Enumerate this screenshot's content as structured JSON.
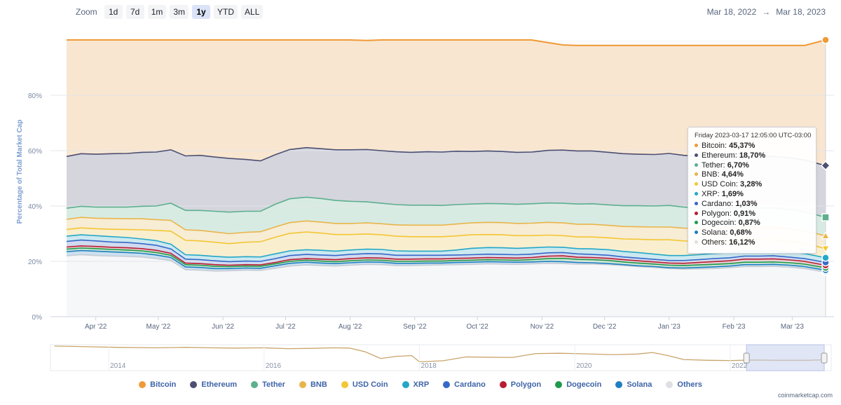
{
  "zoom": {
    "label": "Zoom",
    "buttons": [
      "1d",
      "7d",
      "1m",
      "3m",
      "1y",
      "YTD",
      "ALL"
    ],
    "active": "1y"
  },
  "range": {
    "from": "Mar 18, 2022",
    "separator": "→",
    "to": "Mar 18, 2023"
  },
  "chart_data": {
    "type": "area",
    "stacked": true,
    "ylabel": "Percentage of Total Market Cap",
    "ylim": [
      0,
      100
    ],
    "yticks": [
      "0%",
      "20%",
      "40%",
      "60%",
      "80%"
    ],
    "x_ticks": [
      "Apr '22",
      "May '22",
      "Jun '22",
      "Jul '22",
      "Aug '22",
      "Sep '22",
      "Oct '22",
      "Nov '22",
      "Dec '22",
      "Jan '23",
      "Feb '23",
      "Mar '23"
    ],
    "x": [
      "2022-03-18",
      "2022-03-25",
      "2022-04-01",
      "2022-04-09",
      "2022-04-16",
      "2022-04-23",
      "2022-04-30",
      "2022-05-07",
      "2022-05-14",
      "2022-05-21",
      "2022-05-28",
      "2022-06-04",
      "2022-06-12",
      "2022-06-19",
      "2022-06-26",
      "2022-07-03",
      "2022-07-11",
      "2022-07-18",
      "2022-07-25",
      "2022-08-01",
      "2022-08-09",
      "2022-08-16",
      "2022-08-23",
      "2022-08-30",
      "2022-09-07",
      "2022-09-14",
      "2022-09-21",
      "2022-09-28",
      "2022-10-06",
      "2022-10-13",
      "2022-10-20",
      "2022-10-27",
      "2022-11-04",
      "2022-11-11",
      "2022-11-18",
      "2022-11-25",
      "2022-12-03",
      "2022-12-10",
      "2022-12-17",
      "2022-12-25",
      "2023-01-01",
      "2023-01-08",
      "2023-01-15",
      "2023-01-22",
      "2023-01-30",
      "2023-02-06",
      "2023-02-13",
      "2023-02-20",
      "2023-02-28",
      "2023-03-07",
      "2023-03-17"
    ],
    "series": [
      {
        "name": "Others",
        "color": "#e6e8ec",
        "values": [
          22.0,
          22.4,
          22.1,
          21.9,
          21.8,
          21.6,
          21.0,
          20.3,
          17.0,
          16.8,
          16.5,
          16.6,
          16.8,
          16.7,
          17.5,
          18.3,
          18.7,
          18.5,
          18.3,
          18.6,
          18.9,
          18.8,
          18.5,
          18.5,
          18.6,
          18.7,
          18.8,
          18.9,
          19.1,
          19.0,
          18.9,
          19.1,
          19.3,
          19.2,
          19.0,
          19.0,
          18.8,
          18.5,
          18.1,
          17.8,
          17.4,
          17.2,
          17.3,
          17.4,
          17.7,
          18.1,
          18.1,
          18.2,
          17.9,
          17.4,
          16.12
        ]
      },
      {
        "name": "Solana",
        "color": "#1f7fc2",
        "values": [
          1.5,
          1.5,
          1.6,
          1.5,
          1.4,
          1.3,
          1.3,
          1.1,
          1.0,
          1.0,
          0.9,
          0.8,
          0.8,
          0.8,
          0.9,
          1.0,
          1.0,
          0.9,
          0.9,
          0.9,
          0.9,
          0.9,
          0.8,
          0.8,
          0.8,
          0.7,
          0.8,
          0.8,
          0.8,
          0.8,
          0.8,
          0.7,
          0.7,
          0.7,
          0.6,
          0.5,
          0.4,
          0.3,
          0.3,
          0.3,
          0.3,
          0.4,
          0.5,
          0.6,
          0.6,
          0.7,
          0.7,
          0.7,
          0.7,
          0.7,
          0.68
        ]
      },
      {
        "name": "Dogecoin",
        "color": "#1f9a4b",
        "values": [
          0.9,
          0.9,
          0.9,
          0.9,
          0.9,
          0.9,
          0.9,
          0.8,
          0.8,
          0.8,
          0.8,
          0.7,
          0.7,
          0.7,
          0.7,
          0.7,
          0.7,
          0.7,
          0.7,
          0.7,
          0.7,
          0.7,
          0.7,
          0.7,
          0.7,
          0.7,
          0.7,
          0.7,
          0.7,
          0.7,
          0.7,
          0.8,
          1.0,
          1.2,
          1.1,
          1.1,
          1.1,
          1.0,
          1.0,
          0.9,
          0.9,
          0.9,
          0.9,
          0.9,
          0.9,
          0.9,
          0.9,
          0.9,
          0.9,
          0.9,
          0.87
        ]
      },
      {
        "name": "Polygon",
        "color": "#b71d33",
        "values": [
          0.8,
          0.8,
          0.8,
          0.8,
          0.8,
          0.8,
          0.8,
          0.7,
          0.6,
          0.6,
          0.6,
          0.5,
          0.5,
          0.5,
          0.5,
          0.6,
          0.6,
          0.7,
          0.7,
          0.8,
          0.8,
          0.8,
          0.8,
          0.8,
          0.8,
          0.8,
          0.8,
          0.8,
          0.8,
          0.8,
          0.8,
          0.8,
          0.9,
          0.9,
          0.8,
          0.8,
          0.8,
          0.8,
          0.8,
          0.8,
          0.8,
          0.8,
          0.9,
          1.0,
          1.0,
          1.1,
          1.1,
          1.1,
          1.0,
          1.0,
          0.91
        ]
      },
      {
        "name": "Cardano",
        "color": "#3668c9",
        "values": [
          2.0,
          2.1,
          2.0,
          1.9,
          1.9,
          1.8,
          1.8,
          1.6,
          1.4,
          1.4,
          1.4,
          1.3,
          1.3,
          1.3,
          1.4,
          1.5,
          1.5,
          1.5,
          1.5,
          1.5,
          1.5,
          1.5,
          1.4,
          1.4,
          1.3,
          1.3,
          1.2,
          1.2,
          1.2,
          1.2,
          1.2,
          1.2,
          1.2,
          1.2,
          1.2,
          1.1,
          1.1,
          1.0,
          1.0,
          0.9,
          0.9,
          1.0,
          1.0,
          1.1,
          1.1,
          1.1,
          1.1,
          1.1,
          1.0,
          1.0,
          1.03
        ]
      },
      {
        "name": "XRP",
        "color": "#23a7c8",
        "values": [
          1.9,
          1.9,
          1.9,
          1.9,
          1.8,
          1.7,
          1.7,
          1.7,
          1.6,
          1.6,
          1.6,
          1.6,
          1.6,
          1.6,
          1.7,
          1.7,
          1.7,
          1.7,
          1.6,
          1.6,
          1.6,
          1.6,
          1.6,
          1.5,
          1.5,
          1.5,
          1.8,
          2.3,
          2.4,
          2.4,
          2.3,
          2.3,
          2.1,
          1.9,
          1.9,
          2.0,
          2.0,
          2.0,
          2.0,
          1.9,
          1.8,
          1.8,
          1.8,
          1.8,
          1.8,
          1.8,
          1.8,
          1.8,
          1.8,
          1.8,
          1.69
        ]
      },
      {
        "name": "USD Coin",
        "color": "#f3c634",
        "values": [
          2.4,
          2.5,
          2.5,
          2.7,
          2.9,
          3.3,
          3.7,
          4.7,
          5.2,
          5.2,
          5.1,
          4.9,
          5.2,
          5.5,
          6.0,
          6.3,
          6.4,
          6.2,
          6.0,
          5.6,
          5.5,
          5.3,
          5.3,
          5.2,
          5.2,
          5.2,
          5.1,
          4.9,
          4.7,
          4.7,
          4.6,
          4.4,
          4.3,
          4.2,
          4.2,
          4.3,
          4.3,
          4.5,
          4.8,
          5.2,
          5.7,
          5.3,
          4.9,
          4.6,
          4.4,
          4.2,
          4.1,
          4.0,
          3.9,
          3.7,
          3.28
        ]
      },
      {
        "name": "BNB",
        "color": "#e8b54a",
        "values": [
          3.7,
          3.8,
          3.8,
          3.9,
          3.9,
          4.0,
          3.9,
          3.9,
          3.8,
          3.8,
          3.7,
          3.6,
          3.6,
          3.6,
          3.7,
          3.9,
          4.0,
          4.0,
          4.0,
          4.0,
          4.0,
          4.0,
          4.1,
          4.2,
          4.2,
          4.2,
          4.3,
          4.3,
          4.4,
          4.4,
          4.4,
          4.5,
          4.6,
          4.6,
          4.6,
          4.6,
          4.5,
          4.5,
          4.5,
          4.6,
          4.6,
          4.6,
          4.6,
          4.6,
          4.6,
          4.6,
          4.6,
          4.6,
          4.6,
          4.6,
          4.64
        ]
      },
      {
        "name": "Tether",
        "color": "#5cb08e",
        "values": [
          4.0,
          4.0,
          4.0,
          4.1,
          4.2,
          4.5,
          4.9,
          6.2,
          7.0,
          7.2,
          7.5,
          7.8,
          7.6,
          7.4,
          8.2,
          8.6,
          8.6,
          8.5,
          8.3,
          8.0,
          7.6,
          7.4,
          7.3,
          7.2,
          7.2,
          7.1,
          7.0,
          6.8,
          6.8,
          6.8,
          6.9,
          7.0,
          7.0,
          7.1,
          7.3,
          7.4,
          7.4,
          7.5,
          7.6,
          7.6,
          7.8,
          7.6,
          7.4,
          7.2,
          7.1,
          7.0,
          6.9,
          6.9,
          6.9,
          6.8,
          6.7
        ]
      },
      {
        "name": "Ethereum",
        "color": "#4b4f72",
        "values": [
          18.7,
          19.0,
          19.1,
          19.3,
          19.4,
          19.5,
          19.5,
          19.3,
          19.7,
          19.9,
          19.6,
          19.4,
          18.7,
          18.2,
          17.9,
          17.8,
          17.9,
          18.0,
          18.3,
          18.6,
          18.9,
          19.0,
          19.1,
          19.1,
          19.3,
          19.3,
          19.3,
          19.0,
          19.0,
          18.9,
          18.8,
          18.7,
          19.0,
          19.2,
          19.2,
          19.1,
          19.0,
          18.8,
          18.6,
          18.6,
          18.8,
          18.7,
          18.7,
          18.6,
          18.6,
          18.6,
          18.6,
          18.6,
          18.7,
          18.7,
          18.7
        ]
      },
      {
        "name": "Bitcoin",
        "color": "#f09a37",
        "values": [
          42.1,
          41.1,
          41.3,
          41.1,
          41.0,
          40.6,
          40.5,
          39.7,
          41.9,
          41.7,
          42.3,
          42.8,
          43.2,
          43.7,
          41.5,
          39.6,
          38.9,
          39.3,
          39.7,
          39.7,
          39.4,
          40.0,
          40.4,
          40.6,
          40.4,
          40.5,
          40.2,
          40.3,
          40.1,
          40.3,
          40.6,
          40.5,
          38.9,
          38.0,
          38.1,
          38.1,
          38.6,
          39.1,
          39.3,
          39.4,
          39.0,
          39.7,
          40.0,
          40.2,
          40.2,
          39.9,
          40.1,
          40.1,
          40.6,
          41.4,
          45.37
        ]
      }
    ],
    "tooltip": {
      "header": "Friday 2023-03-17 12:05:00 UTC-03:00",
      "rows": [
        {
          "name": "Bitcoin",
          "value": "45,37%",
          "color": "#f09a37"
        },
        {
          "name": "Ethereum",
          "value": "18,70%",
          "color": "#4b4f72"
        },
        {
          "name": "Tether",
          "value": "6,70%",
          "color": "#5cb08e"
        },
        {
          "name": "BNB",
          "value": "4,64%",
          "color": "#e8b54a"
        },
        {
          "name": "USD Coin",
          "value": "3,28%",
          "color": "#f3c634"
        },
        {
          "name": "XRP",
          "value": "1,69%",
          "color": "#23a7c8"
        },
        {
          "name": "Cardano",
          "value": "1,03%",
          "color": "#3668c9"
        },
        {
          "name": "Polygon",
          "value": "0,91%",
          "color": "#b71d33"
        },
        {
          "name": "Dogecoin",
          "value": "0,87%",
          "color": "#1f9a4b"
        },
        {
          "name": "Solana",
          "value": "0,68%",
          "color": "#1f7fc2"
        },
        {
          "name": "Others",
          "value": "16,12%",
          "color": "#dddfe3"
        }
      ]
    },
    "navigator": {
      "x_ticks": [
        "2014",
        "2016",
        "2018",
        "2020",
        "2022"
      ],
      "x_range": [
        2013.25,
        2023.3
      ],
      "selection": [
        2022.21,
        2023.21
      ],
      "line_color": "#c9a46a",
      "line": [
        [
          2013.3,
          95
        ],
        [
          2013.8,
          92
        ],
        [
          2014.1,
          90
        ],
        [
          2014.6,
          88
        ],
        [
          2015.0,
          90
        ],
        [
          2015.3,
          88
        ],
        [
          2015.6,
          87
        ],
        [
          2016.0,
          88
        ],
        [
          2016.3,
          85
        ],
        [
          2016.6,
          86
        ],
        [
          2016.9,
          88
        ],
        [
          2017.1,
          87
        ],
        [
          2017.3,
          73
        ],
        [
          2017.5,
          47
        ],
        [
          2017.7,
          55
        ],
        [
          2017.9,
          58
        ],
        [
          2018.0,
          34
        ],
        [
          2018.3,
          38
        ],
        [
          2018.6,
          53
        ],
        [
          2018.9,
          52
        ],
        [
          2019.2,
          51
        ],
        [
          2019.5,
          66
        ],
        [
          2019.8,
          67
        ],
        [
          2020.0,
          66
        ],
        [
          2020.5,
          62
        ],
        [
          2020.8,
          64
        ],
        [
          2021.0,
          70
        ],
        [
          2021.2,
          58
        ],
        [
          2021.4,
          43
        ],
        [
          2021.7,
          40
        ],
        [
          2022.0,
          39
        ],
        [
          2022.3,
          41
        ],
        [
          2022.6,
          40
        ],
        [
          2023.0,
          40
        ],
        [
          2023.2,
          42
        ]
      ]
    },
    "legend": [
      "Bitcoin",
      "Ethereum",
      "Tether",
      "BNB",
      "USD Coin",
      "XRP",
      "Cardano",
      "Polygon",
      "Dogecoin",
      "Solana",
      "Others"
    ],
    "legend_colors": [
      "#f09a37",
      "#4b4f72",
      "#5cb08e",
      "#e8b54a",
      "#f3c634",
      "#23a7c8",
      "#3668c9",
      "#b71d33",
      "#1f9a4b",
      "#1f7fc2",
      "#dddfe3"
    ]
  },
  "credit": "coinmarketcap.com"
}
